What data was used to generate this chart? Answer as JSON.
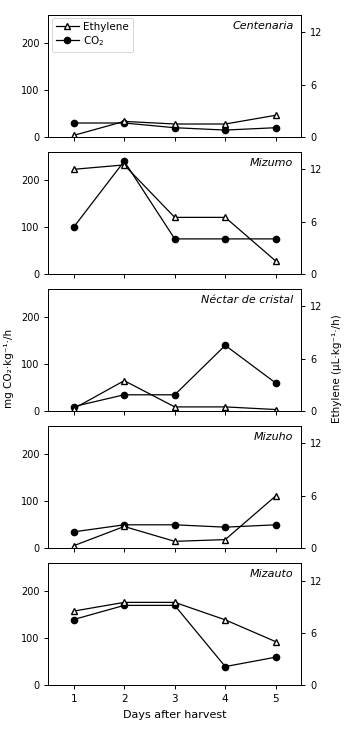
{
  "cultivars": [
    "Centenaria",
    "Mizumo",
    "Néctar de cristal",
    "Mizuho",
    "Mizauto"
  ],
  "days": [
    1,
    2,
    3,
    4,
    5
  ],
  "co2_data": [
    [
      30,
      30,
      20,
      15,
      20
    ],
    [
      100,
      240,
      75,
      75,
      75
    ],
    [
      10,
      35,
      35,
      140,
      60
    ],
    [
      35,
      50,
      50,
      45,
      50
    ],
    [
      140,
      170,
      170,
      40,
      60
    ]
  ],
  "ethylene_data": [
    [
      0.2,
      1.8,
      1.5,
      1.5,
      2.5
    ],
    [
      12,
      12.5,
      6.5,
      6.5,
      1.5
    ],
    [
      0.3,
      3.5,
      0.5,
      0.5,
      0.2
    ],
    [
      0.3,
      2.5,
      0.8,
      1.0,
      6.0
    ],
    [
      8.5,
      9.5,
      9.5,
      7.5,
      5.0
    ]
  ],
  "co2_ylim": [
    0,
    260
  ],
  "co2_yticks": [
    0,
    100,
    200
  ],
  "ethylene_ylim": [
    0,
    14
  ],
  "ethylene_yticks": [
    0,
    6,
    12
  ],
  "x_days": [
    1,
    2,
    3,
    4,
    5
  ],
  "xlabel": "Days after harvest",
  "ylabel_left": "mg CO₂·kg⁻¹·/h",
  "ylabel_right": "Ethylene (μL·kg⁻¹·/h)",
  "bg_color": "white",
  "legend_labels": [
    "Ethylene",
    "CO$_2$"
  ]
}
